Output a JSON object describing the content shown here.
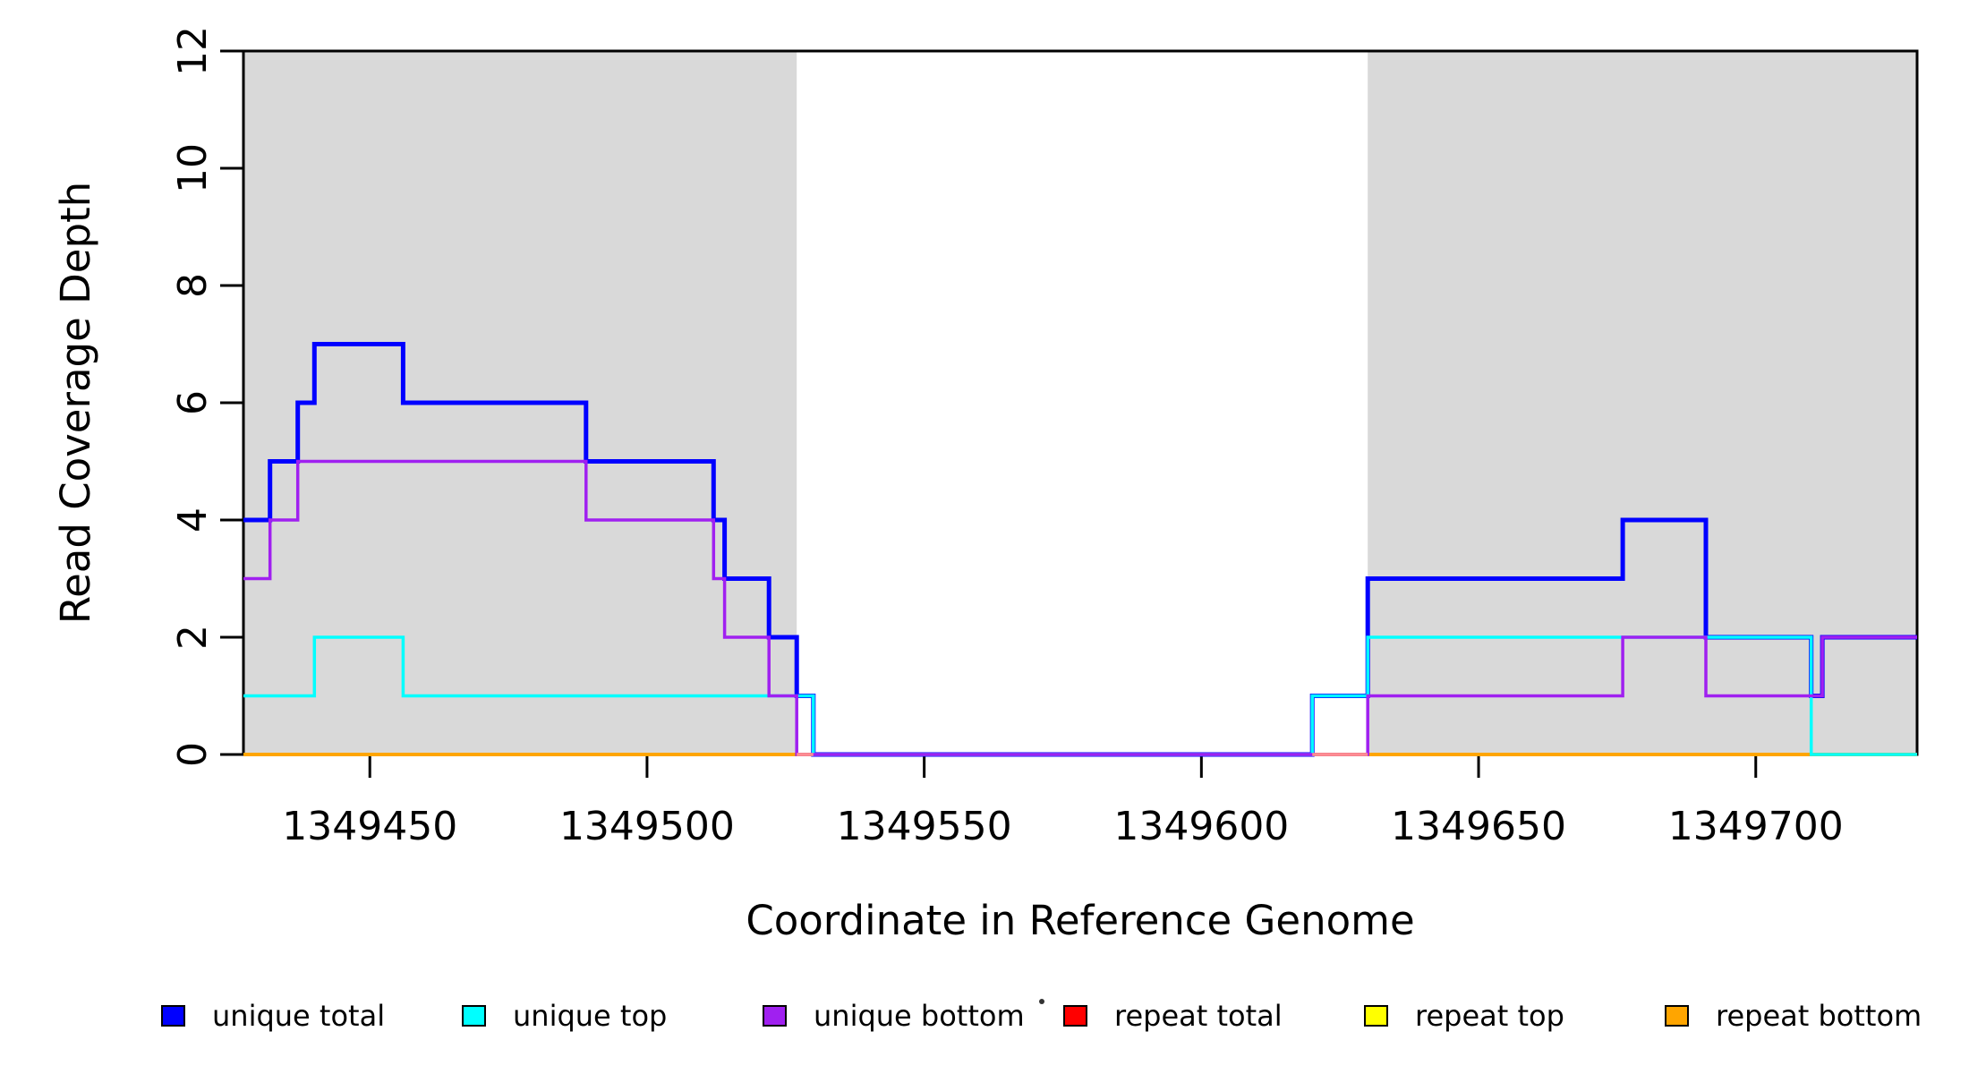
{
  "chart_data": {
    "type": "line",
    "subtype": "step-coverage-plot",
    "title": "",
    "xlabel": "Coordinate in Reference Genome",
    "ylabel": "Read Coverage Depth",
    "xlim": [
      1349427.2,
      1349729.1
    ],
    "ylim": [
      0,
      12
    ],
    "x_ticks": [
      1349450,
      1349500,
      1349550,
      1349600,
      1349650,
      1349700
    ],
    "y_ticks": [
      0,
      2,
      4,
      6,
      8,
      10,
      12
    ],
    "grid": false,
    "box": true,
    "background_color": "#ffffff",
    "shade_color": "#d9d9d9",
    "shaded_regions": [
      {
        "name": "repeat-region-left",
        "x0": 1349427.2,
        "x1": 1349527
      },
      {
        "name": "repeat-region-right",
        "x0": 1349630,
        "x1": 1349729.1
      }
    ],
    "series": [
      {
        "name": "unique total",
        "color": "#0000ff",
        "line_width": 5,
        "step": true,
        "points": [
          [
            1349427.2,
            4
          ],
          [
            1349432,
            5
          ],
          [
            1349437,
            6
          ],
          [
            1349440,
            7
          ],
          [
            1349456,
            6
          ],
          [
            1349489,
            5
          ],
          [
            1349512,
            4
          ],
          [
            1349514,
            3
          ],
          [
            1349522,
            2
          ],
          [
            1349527,
            1
          ],
          [
            1349530,
            0
          ],
          [
            1349620,
            1
          ],
          [
            1349630,
            3
          ],
          [
            1349676,
            4
          ],
          [
            1349691,
            2
          ],
          [
            1349710,
            1
          ],
          [
            1349712,
            2
          ]
        ]
      },
      {
        "name": "unique top",
        "color": "#00ffff",
        "line_width": 3.5,
        "step": true,
        "points": [
          [
            1349427.2,
            1
          ],
          [
            1349440,
            2
          ],
          [
            1349456,
            1
          ],
          [
            1349530,
            0
          ],
          [
            1349620,
            1
          ],
          [
            1349630,
            2
          ],
          [
            1349710,
            0
          ]
        ]
      },
      {
        "name": "unique bottom",
        "color": "#a020f0",
        "line_width": 3.5,
        "step": true,
        "points": [
          [
            1349427.2,
            3
          ],
          [
            1349432,
            4
          ],
          [
            1349437,
            5
          ],
          [
            1349489,
            4
          ],
          [
            1349512,
            3
          ],
          [
            1349514,
            2
          ],
          [
            1349522,
            1
          ],
          [
            1349527,
            0
          ],
          [
            1349630,
            1
          ],
          [
            1349676,
            2
          ],
          [
            1349691,
            1
          ],
          [
            1349712,
            2
          ]
        ]
      },
      {
        "name": "repeat total",
        "color": "#ff0000",
        "line_width": 3,
        "step": true,
        "points": [
          [
            1349427.2,
            0
          ]
        ]
      },
      {
        "name": "repeat top",
        "color": "#ffff00",
        "line_width": 3,
        "step": true,
        "points": [
          [
            1349427.2,
            0
          ]
        ]
      },
      {
        "name": "repeat bottom",
        "color": "#ffa500",
        "line_width": 4,
        "step": true,
        "points": [
          [
            1349427.2,
            0
          ]
        ]
      }
    ],
    "draw_order": [
      "repeat total",
      "repeat top",
      "repeat bottom",
      "unique total",
      "unique top",
      "unique bottom"
    ],
    "baseline_blend_segments": [
      {
        "x0": 1349527,
        "x1": 1349530
      },
      {
        "x0": 1349620,
        "x1": 1349630
      }
    ],
    "blend_color": "#ff8d93",
    "legend": {
      "position": "bottom",
      "items": [
        {
          "label": "unique total",
          "color": "#0000ff"
        },
        {
          "label": "unique top",
          "color": "#00ffff"
        },
        {
          "label": "unique bottom",
          "color": "#a020f0"
        },
        {
          "label": "repeat total",
          "color": "#ff0000"
        },
        {
          "label": "repeat top",
          "color": "#ffff00"
        },
        {
          "label": "repeat bottom",
          "color": "#ffa500"
        }
      ]
    }
  }
}
